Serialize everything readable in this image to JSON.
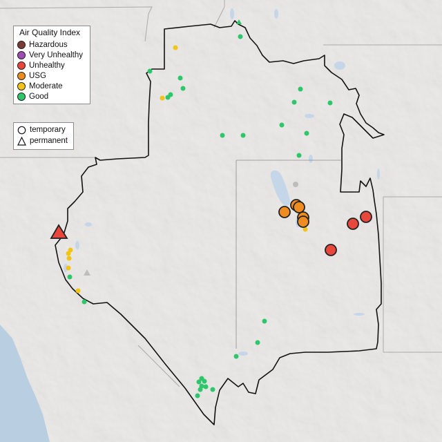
{
  "map": {
    "colors": {
      "land": "#e6e4e1",
      "ocean": "#b9cfe1",
      "lake": "#c4d6e8",
      "boundary": "#111111",
      "state_line": "#aaaaaa",
      "faded": "#bdbdbd"
    },
    "monitor_classes": {
      "Hazardous": "#7a3b35",
      "Very Unhealthy": "#9b4db3",
      "Unhealthy": "#e8473c",
      "USG": "#ef8c21",
      "Moderate": "#f2c417",
      "Good": "#2ec66b"
    },
    "legend_aqi": {
      "title": "Air Quality Index",
      "items": [
        {
          "label": "Hazardous",
          "color": "#7a3b35"
        },
        {
          "label": "Very Unhealthy",
          "color": "#9b4db3"
        },
        {
          "label": "Unhealthy",
          "color": "#e8473c"
        },
        {
          "label": "USG",
          "color": "#ef8c21"
        },
        {
          "label": "Moderate",
          "color": "#f2c417"
        },
        {
          "label": "Good",
          "color": "#2ec66b"
        }
      ]
    },
    "legend_type": {
      "items": [
        {
          "label": "temporary",
          "icon": "circle-outline-icon"
        },
        {
          "label": "permanent",
          "icon": "triangle-outline-icon"
        }
      ]
    }
  }
}
